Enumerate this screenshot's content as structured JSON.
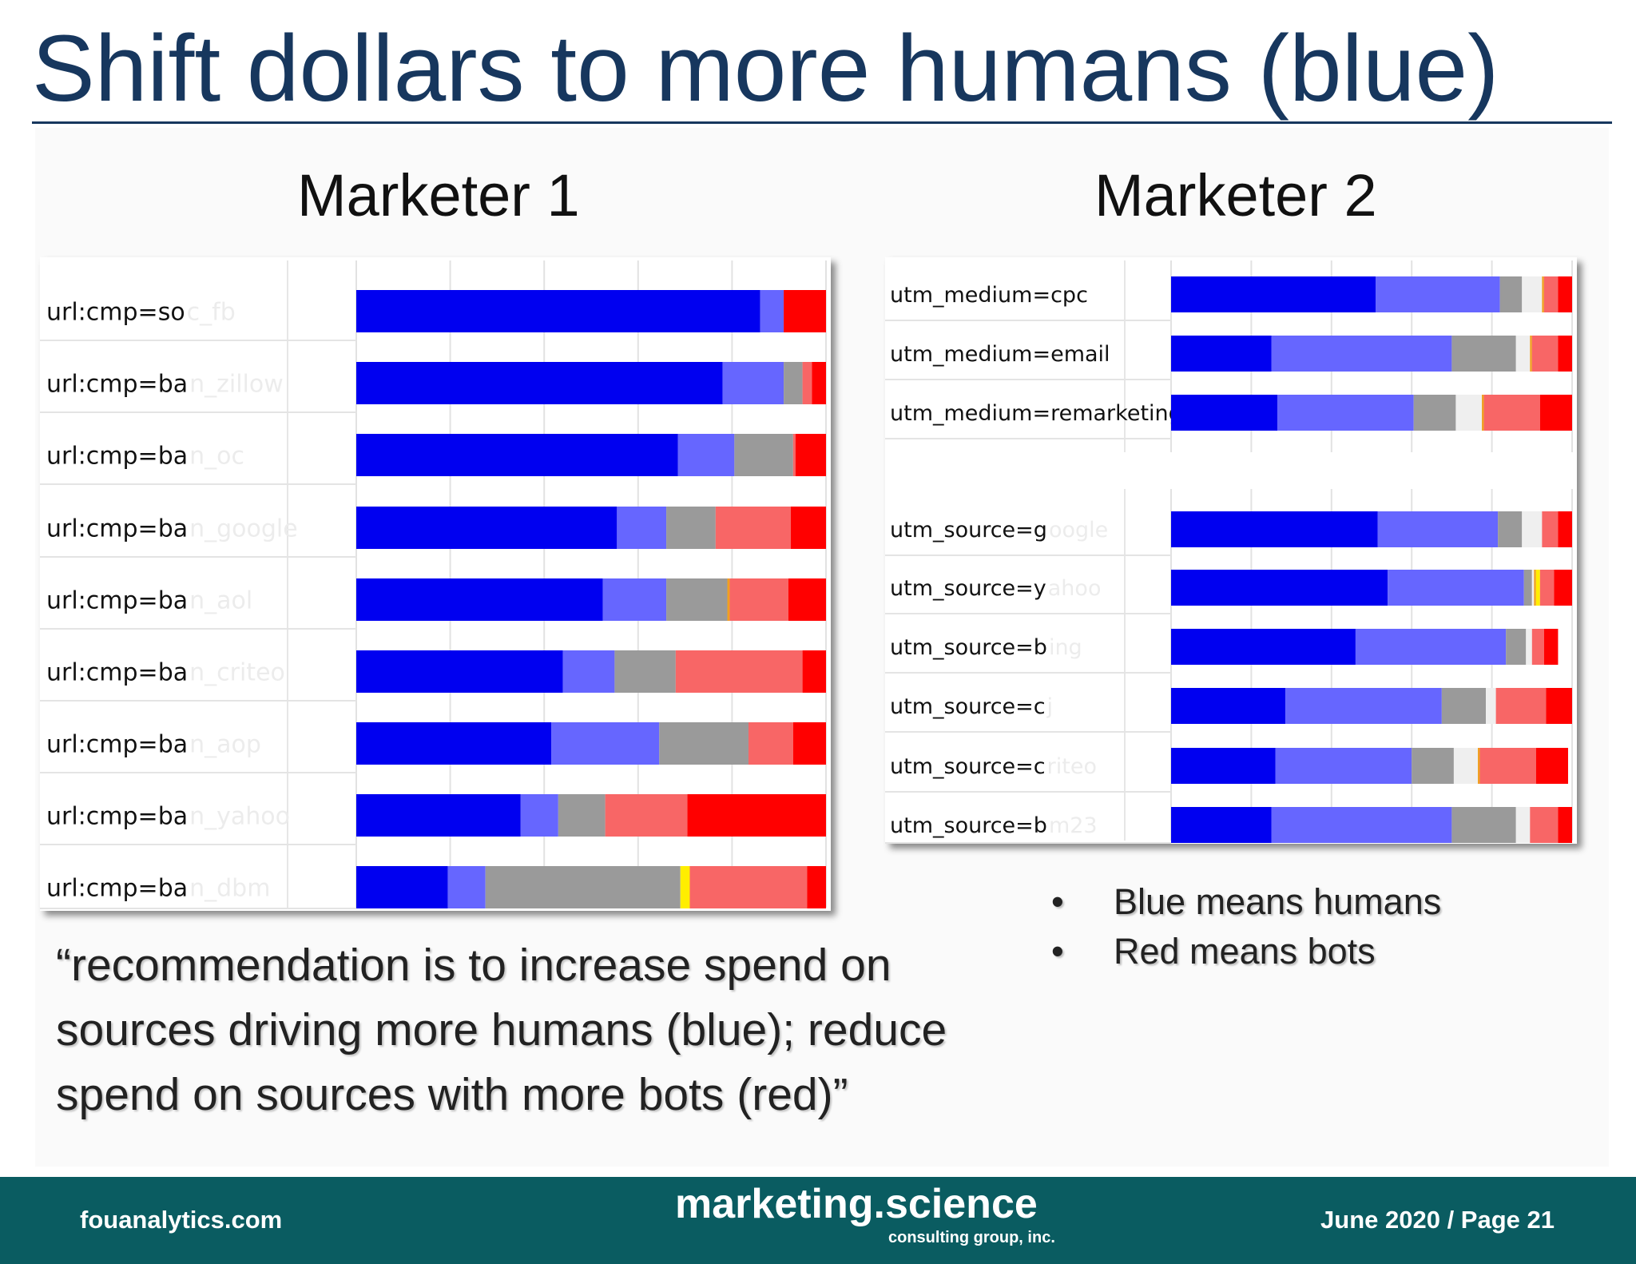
{
  "slide": {
    "title": "Shift dollars to more humans (blue)",
    "quote": "“recommendation is to increase spend on sources driving more humans (blue); reduce spend on sources with more bots (red)”",
    "bullets": [
      "Blue means humans",
      "Red means bots"
    ],
    "bullet_icon": "•"
  },
  "footer": {
    "left": "fouanalytics.com",
    "brand": "marketing.science",
    "brand_sub": "consulting group, inc.",
    "right": "June 2020 / Page 21"
  },
  "colors": {
    "human_dark": "#0000f0",
    "human_light": "#6666ff",
    "gray": "#9a9a9a",
    "light_gray": "#efefef",
    "orange": "#f0a020",
    "yellow": "#ffee00",
    "bot_light": "#f86666",
    "bot_dark": "#ff0000",
    "title": "#17375e",
    "footer_bg": "#0a5c61"
  },
  "chart_data": [
    {
      "type": "bar",
      "stacked": true,
      "orientation": "horizontal",
      "title": "Marketer 1",
      "categories": [
        "url:cmp=so",
        "url:cmp=ba",
        "url:cmp=ba",
        "url:cmp=ba",
        "url:cmp=ba",
        "url:cmp=ba",
        "url:cmp=ba",
        "url:cmp=ba",
        "url:cmp=ba"
      ],
      "blurred_suffixes": [
        "c_fb",
        "n_zillow",
        "n_oc",
        "n_google",
        "n_aol",
        "n_criteo",
        "n_aop",
        "n_yahoo",
        "n_dbm"
      ],
      "segments": [
        "human_dark",
        "human_light",
        "gray",
        "light_gray",
        "orange",
        "yellow",
        "bot_light",
        "bot_dark"
      ],
      "values": [
        [
          86,
          5,
          0,
          0,
          0,
          0,
          0,
          9
        ],
        [
          78,
          13,
          4,
          0,
          0,
          0,
          2,
          3
        ],
        [
          68.5,
          12,
          12.5,
          0,
          0,
          0,
          0.5,
          6.5
        ],
        [
          55.5,
          10.5,
          10.5,
          0,
          0,
          0,
          16,
          7.5
        ],
        [
          52.5,
          13.5,
          13,
          0,
          0.5,
          0,
          12.5,
          8
        ],
        [
          44,
          11,
          13,
          0,
          0,
          0,
          27,
          5
        ],
        [
          41.5,
          23,
          19,
          0,
          0,
          0,
          9.5,
          7
        ],
        [
          35,
          8,
          10,
          0,
          0,
          0,
          17.5,
          29.5
        ],
        [
          19.5,
          8,
          41.5,
          0,
          0,
          2,
          25,
          4
        ]
      ],
      "xlim": [
        0,
        100
      ]
    },
    {
      "type": "bar",
      "stacked": true,
      "orientation": "horizontal",
      "title": "Marketer 2",
      "categories": [
        "utm_medium=cpc",
        "utm_medium=email",
        "utm_medium=remarketing",
        "utm_source=g",
        "utm_source=y",
        "utm_source=b",
        "utm_source=c",
        "utm_source=c",
        "utm_source=b"
      ],
      "blurred_suffixes": [
        "",
        "",
        "",
        "oogle",
        "ahoo",
        "ing",
        "j",
        "riteo",
        "m23"
      ],
      "segments": [
        "human_dark",
        "human_light",
        "gray",
        "light_gray",
        "orange",
        "yellow",
        "bot_light",
        "bot_dark"
      ],
      "values": [
        [
          51,
          31,
          5.5,
          5,
          0.5,
          0,
          3.5,
          3.5
        ],
        [
          25,
          45,
          16,
          3.5,
          0.5,
          0,
          6.5,
          3.5
        ],
        [
          26.5,
          34,
          10.5,
          6.5,
          0.5,
          0,
          14,
          8
        ],
        [
          51.5,
          30,
          6,
          5,
          0,
          0,
          4,
          3.5
        ],
        [
          54,
          34,
          2,
          0.5,
          0.5,
          1,
          3.5,
          4.5
        ],
        [
          46,
          37.5,
          5,
          1.5,
          0,
          0,
          3,
          3.5
        ],
        [
          28.5,
          39,
          11,
          2.5,
          0,
          0,
          12.5,
          6.5
        ],
        [
          26,
          34,
          10.5,
          6,
          0.5,
          0,
          14,
          8
        ],
        [
          25,
          45,
          16,
          3.5,
          0,
          0,
          7,
          3.5
        ]
      ],
      "xlim": [
        0,
        100
      ]
    }
  ]
}
